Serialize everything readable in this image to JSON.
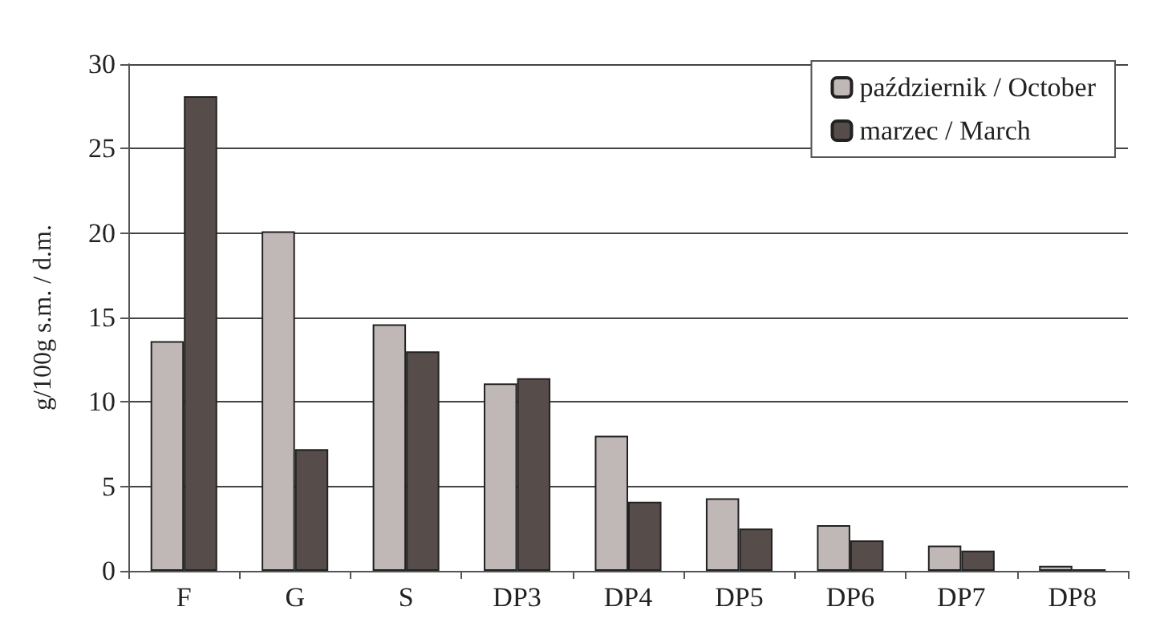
{
  "chart_data": {
    "type": "bar",
    "ylabel": "g/100g s.m. / d.m.",
    "categories": [
      "F",
      "G",
      "S",
      "DP3",
      "DP4",
      "DP5",
      "DP6",
      "DP7",
      "DP8"
    ],
    "series": [
      {
        "name": "październik / October",
        "color": "#c0b8b6",
        "values": [
          13.6,
          20.1,
          14.6,
          11.1,
          8.0,
          4.3,
          2.7,
          1.5,
          0.3
        ]
      },
      {
        "name": "marzec / March",
        "color": "#564c4a",
        "values": [
          28.1,
          7.2,
          13.0,
          11.4,
          4.1,
          2.5,
          1.8,
          1.2,
          0.1
        ]
      }
    ],
    "ylim": [
      0,
      30
    ],
    "yticks": [
      0,
      5,
      10,
      15,
      20,
      25,
      30
    ],
    "grid": "y",
    "legend": "top right"
  }
}
